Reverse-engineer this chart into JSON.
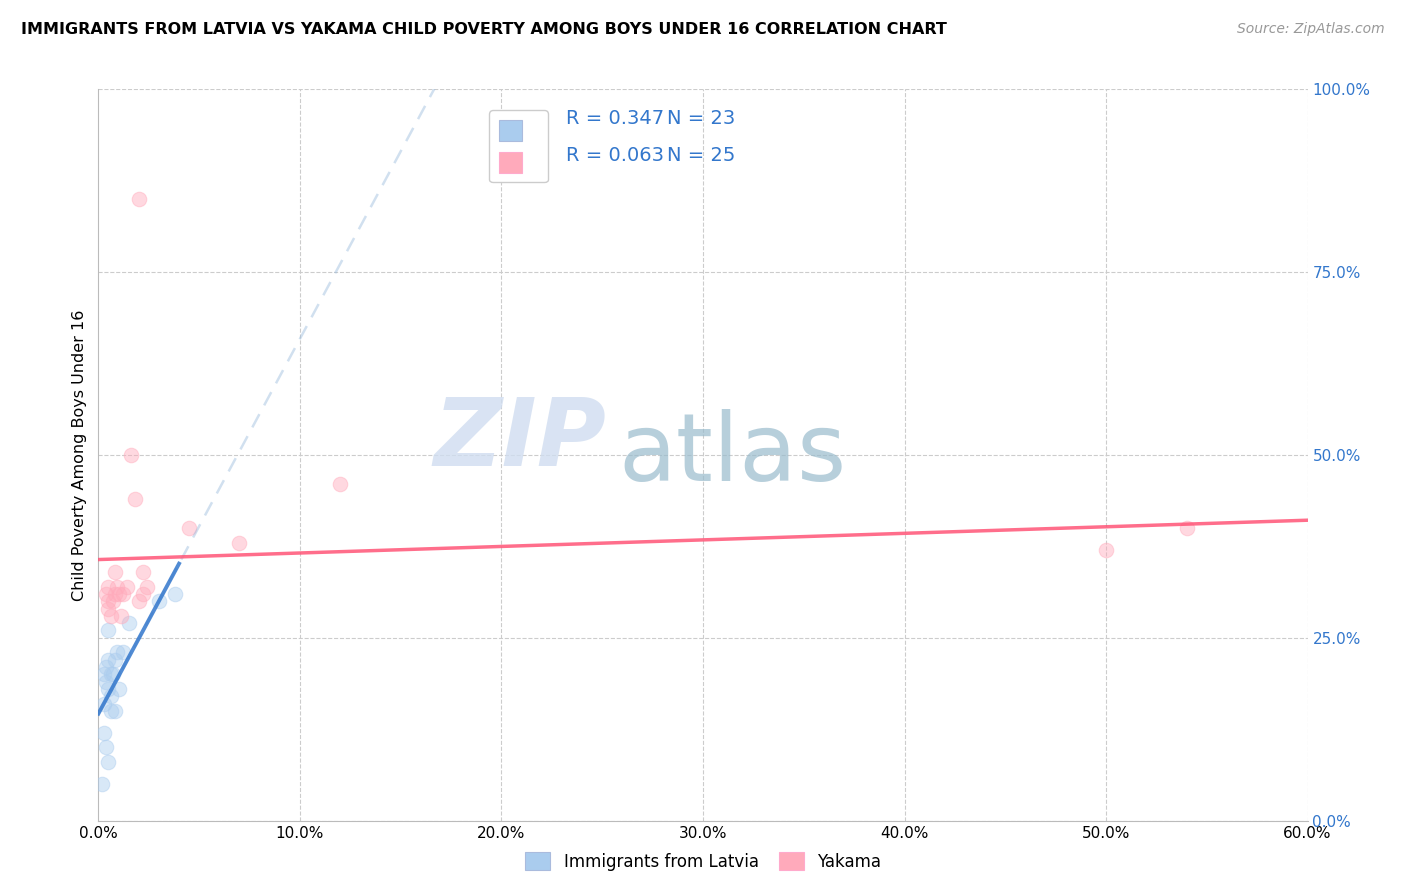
{
  "title": "IMMIGRANTS FROM LATVIA VS YAKAMA CHILD POVERTY AMONG BOYS UNDER 16 CORRELATION CHART",
  "source": "Source: ZipAtlas.com",
  "ylabel": "Child Poverty Among Boys Under 16",
  "x_tick_labels": [
    "0.0%",
    "10.0%",
    "20.0%",
    "30.0%",
    "40.0%",
    "50.0%",
    "60.0%"
  ],
  "x_tick_values": [
    0.0,
    0.1,
    0.2,
    0.3,
    0.4,
    0.5,
    0.6
  ],
  "xlim": [
    0.0,
    0.6
  ],
  "ylim": [
    0.0,
    1.0
  ],
  "right_ytick_labels": [
    "100.0%",
    "75.0%",
    "50.0%",
    "25.0%",
    "0.0%"
  ],
  "right_ytick_values": [
    1.0,
    0.75,
    0.5,
    0.25,
    0.0
  ],
  "grid_color": "#cccccc",
  "background_color": "#ffffff",
  "legend_R1": "R = 0.347",
  "legend_N1": "N = 23",
  "legend_R2": "R = 0.063",
  "legend_N2": "N = 25",
  "color_blue": "#aaccee",
  "color_pink": "#ffaabb",
  "line_blue": "#3377cc",
  "line_blue_dashed": "#99bbdd",
  "line_pink": "#ff5577",
  "watermark_ZIP": "ZIP",
  "watermark_atlas": "atlas",
  "watermark_color_ZIP": "#d0ddf0",
  "watermark_color_atlas": "#99bbcc",
  "series1_label": "Immigrants from Latvia",
  "series2_label": "Yakama",
  "blue_x": [
    0.002,
    0.003,
    0.003,
    0.003,
    0.004,
    0.004,
    0.004,
    0.005,
    0.005,
    0.005,
    0.005,
    0.006,
    0.006,
    0.006,
    0.007,
    0.008,
    0.008,
    0.009,
    0.01,
    0.012,
    0.015,
    0.03,
    0.038
  ],
  "blue_y": [
    0.05,
    0.12,
    0.16,
    0.2,
    0.1,
    0.19,
    0.21,
    0.08,
    0.18,
    0.22,
    0.26,
    0.15,
    0.17,
    0.2,
    0.2,
    0.15,
    0.22,
    0.23,
    0.18,
    0.23,
    0.27,
    0.3,
    0.31
  ],
  "pink_x": [
    0.004,
    0.005,
    0.005,
    0.005,
    0.006,
    0.007,
    0.008,
    0.008,
    0.009,
    0.01,
    0.011,
    0.012,
    0.014,
    0.016,
    0.018,
    0.02,
    0.022,
    0.022,
    0.024,
    0.02,
    0.045,
    0.07,
    0.12,
    0.5,
    0.54
  ],
  "pink_y": [
    0.31,
    0.32,
    0.29,
    0.3,
    0.28,
    0.3,
    0.31,
    0.34,
    0.32,
    0.31,
    0.28,
    0.31,
    0.32,
    0.5,
    0.44,
    0.3,
    0.34,
    0.31,
    0.32,
    0.85,
    0.4,
    0.38,
    0.46,
    0.37,
    0.4
  ],
  "marker_size": 110,
  "marker_alpha": 0.45,
  "line_alpha": 0.85,
  "dashed_line_alpha": 0.45
}
